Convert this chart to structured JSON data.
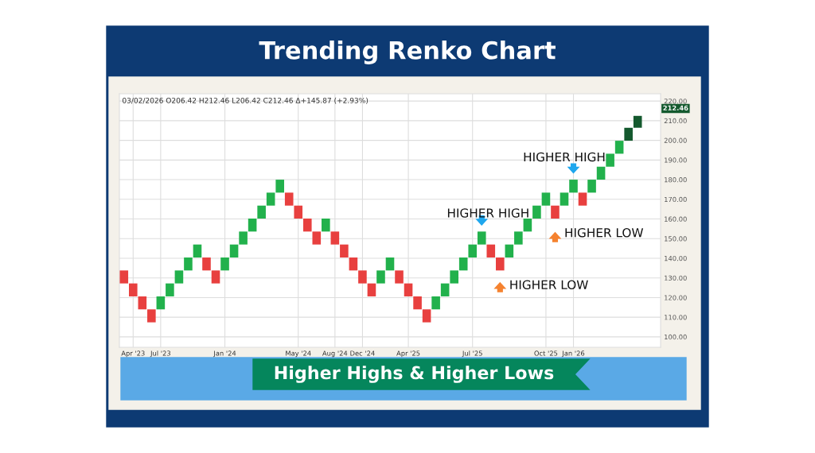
{
  "chart_data": {
    "type": "bar",
    "title": "Trending Renko Chart",
    "subtitle": "03/02/2026 O206.42 H212.46 L206.42 C212.46 Δ+145.87 (+2.93%)",
    "categories": [
      null,
      "Apr '23",
      null,
      null,
      "Jul '23",
      null,
      null,
      null,
      null,
      null,
      null,
      "Jan '24",
      null,
      null,
      null,
      null,
      null,
      null,
      null,
      "May '24",
      null,
      null,
      null,
      "Aug '24",
      null,
      null,
      "Dec '24",
      null,
      null,
      null,
      null,
      "Apr '25",
      null,
      null,
      null,
      null,
      null,
      null,
      "Jul '25",
      null,
      null,
      null,
      null,
      null,
      null,
      null,
      "Oct '25",
      null,
      null,
      "Jan '26",
      null,
      null,
      null,
      null,
      null,
      null,
      null
    ],
    "base": [
      127.2,
      120.6,
      114.0,
      107.4,
      114.0,
      120.6,
      127.2,
      133.8,
      140.4,
      133.8,
      127.2,
      133.8,
      140.4,
      147.0,
      153.6,
      160.2,
      166.8,
      173.4,
      166.8,
      160.2,
      153.6,
      147.0,
      153.6,
      147.0,
      140.4,
      133.8,
      127.2,
      120.6,
      127.2,
      133.8,
      127.2,
      120.6,
      114.0,
      107.4,
      114.0,
      120.6,
      127.2,
      133.8,
      140.4,
      147.0,
      140.4,
      133.8,
      140.4,
      147.0,
      153.6,
      160.2,
      166.8,
      160.2,
      166.8,
      173.4,
      166.8,
      173.4,
      180.0,
      186.6,
      193.2,
      199.8,
      206.42
    ],
    "values": [
      6.6,
      6.6,
      6.6,
      6.6,
      6.6,
      6.6,
      6.6,
      6.6,
      6.6,
      6.6,
      6.6,
      6.6,
      6.6,
      6.6,
      6.6,
      6.6,
      6.6,
      6.6,
      6.6,
      6.6,
      6.6,
      6.6,
      6.6,
      6.6,
      6.6,
      6.6,
      6.6,
      6.6,
      6.6,
      6.6,
      6.6,
      6.6,
      6.6,
      6.6,
      6.6,
      6.6,
      6.6,
      6.6,
      6.6,
      6.6,
      6.6,
      6.6,
      6.6,
      6.6,
      6.6,
      6.6,
      6.6,
      6.6,
      6.6,
      6.6,
      6.6,
      6.6,
      6.6,
      6.6,
      6.6,
      6.6,
      6.04
    ],
    "colors": [
      "#e8403f",
      "#e8403f",
      "#e8403f",
      "#e8403f",
      "#22b14c",
      "#22b14c",
      "#22b14c",
      "#22b14c",
      "#22b14c",
      "#e8403f",
      "#e8403f",
      "#22b14c",
      "#22b14c",
      "#22b14c",
      "#22b14c",
      "#22b14c",
      "#22b14c",
      "#22b14c",
      "#e8403f",
      "#e8403f",
      "#e8403f",
      "#e8403f",
      "#22b14c",
      "#e8403f",
      "#e8403f",
      "#e8403f",
      "#e8403f",
      "#e8403f",
      "#22b14c",
      "#22b14c",
      "#e8403f",
      "#e8403f",
      "#e8403f",
      "#e8403f",
      "#22b14c",
      "#22b14c",
      "#22b14c",
      "#22b14c",
      "#22b14c",
      "#22b14c",
      "#e8403f",
      "#e8403f",
      "#22b14c",
      "#22b14c",
      "#22b14c",
      "#22b14c",
      "#22b14c",
      "#e8403f",
      "#22b14c",
      "#22b14c",
      "#e8403f",
      "#22b14c",
      "#22b14c",
      "#22b14c",
      "#22b14c",
      "#14592e",
      "#14592e"
    ],
    "ylim": [
      94.7,
      223.7
    ],
    "yticks": [
      {
        "value": 100,
        "label": "100.00"
      },
      {
        "value": 110,
        "label": "110.00"
      },
      {
        "value": 120,
        "label": "120.00"
      },
      {
        "value": 130,
        "label": "130.00"
      },
      {
        "value": 140,
        "label": "140.00"
      },
      {
        "value": 150,
        "label": "150.00"
      },
      {
        "value": 160,
        "label": "160.00"
      },
      {
        "value": 170,
        "label": "170.00"
      },
      {
        "value": 180,
        "label": "180.00"
      },
      {
        "value": 190,
        "label": "190.00"
      },
      {
        "value": 200,
        "label": "200.00"
      },
      {
        "value": 210,
        "label": "210.00"
      },
      {
        "value": 220,
        "label": "220.00"
      }
    ],
    "grid": true,
    "annotations": [
      "212.46",
      "HIGHER HIGH",
      "HIGHER HIGH",
      "HIGHER LOW",
      "HIGHER LOW",
      "Higher Highs & Higher Lows"
    ]
  }
}
